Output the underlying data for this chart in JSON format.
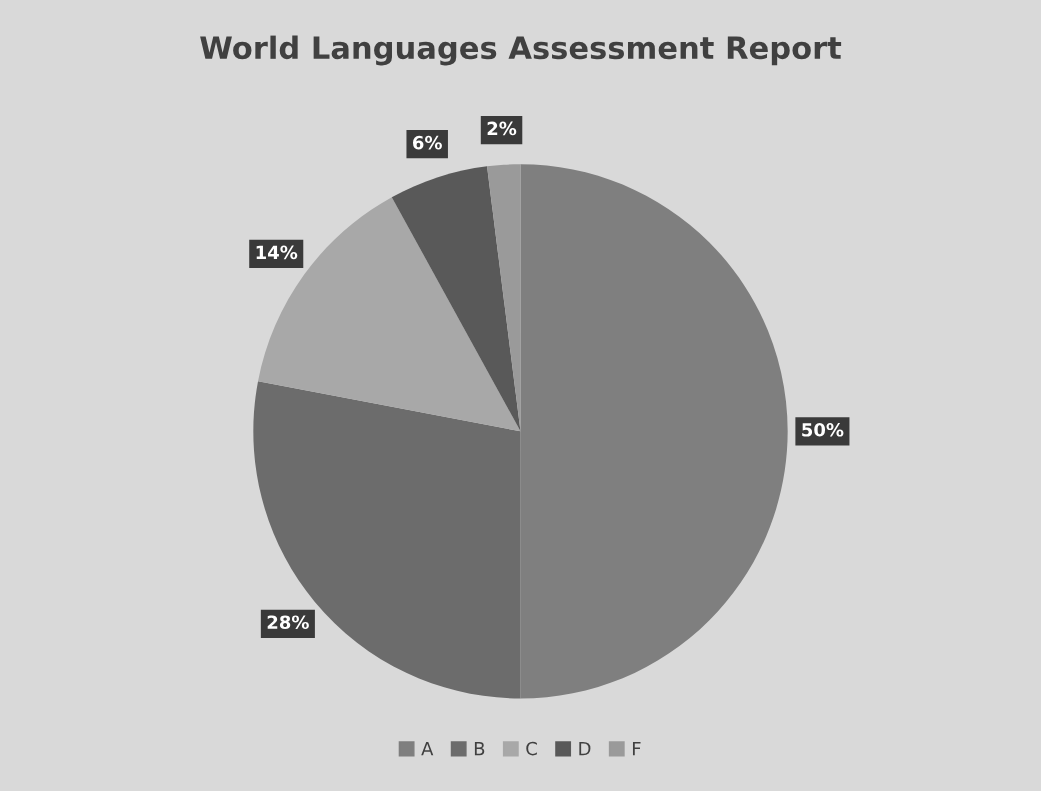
{
  "chart_data": {
    "type": "pie",
    "title": "World Languages Assessment Report",
    "categories": [
      "A",
      "B",
      "C",
      "D",
      "F"
    ],
    "values": [
      50,
      28,
      14,
      6,
      2
    ],
    "value_labels": [
      "50%",
      "28%",
      "14%",
      "6%",
      "2%"
    ],
    "colors": [
      "#7f7f7f",
      "#6c6c6c",
      "#a8a8a8",
      "#595959",
      "#9a9a9a"
    ],
    "legend": "bottom"
  }
}
